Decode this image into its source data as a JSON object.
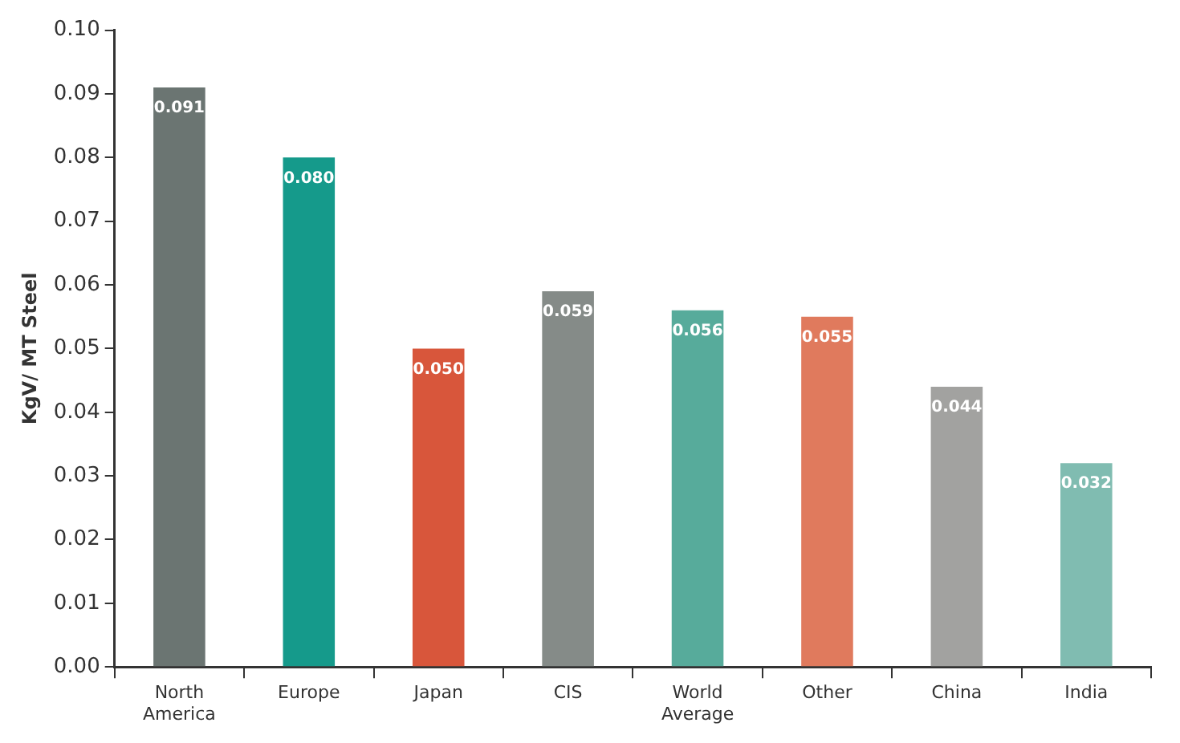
{
  "chart_data": {
    "type": "bar",
    "ylabel": "KgV/ MT Steel",
    "categories": [
      "North America",
      "Europe",
      "Japan",
      "CIS",
      "World Average",
      "Other",
      "China",
      "India"
    ],
    "values": [
      0.091,
      0.08,
      0.05,
      0.059,
      0.056,
      0.055,
      0.044,
      0.032
    ],
    "colors": [
      "#6b7572",
      "#159a8b",
      "#d8563b",
      "#858b88",
      "#57ab9b",
      "#e07a5d",
      "#a2a2a0",
      "#80bcb1"
    ],
    "value_labels": [
      "0.091",
      "0.080",
      "0.050",
      "0.059",
      "0.056",
      "0.055",
      "0.044",
      "0.032"
    ],
    "ylim": [
      0,
      0.1
    ],
    "yticks": [
      {
        "value": 0,
        "label": "0.00"
      },
      {
        "value": 0.01,
        "label": "0.01"
      },
      {
        "value": 0.02,
        "label": "0.02"
      },
      {
        "value": 0.03,
        "label": "0.03"
      },
      {
        "value": 0.04,
        "label": "0.04"
      },
      {
        "value": 0.05,
        "label": "0.05"
      },
      {
        "value": 0.06,
        "label": "0.06"
      },
      {
        "value": 0.07,
        "label": "0.07"
      },
      {
        "value": 0.08,
        "label": "0.08"
      },
      {
        "value": 0.09,
        "label": "0.09"
      },
      {
        "value": 0.1,
        "label": "0.10"
      }
    ],
    "grid": false,
    "legend": false
  }
}
